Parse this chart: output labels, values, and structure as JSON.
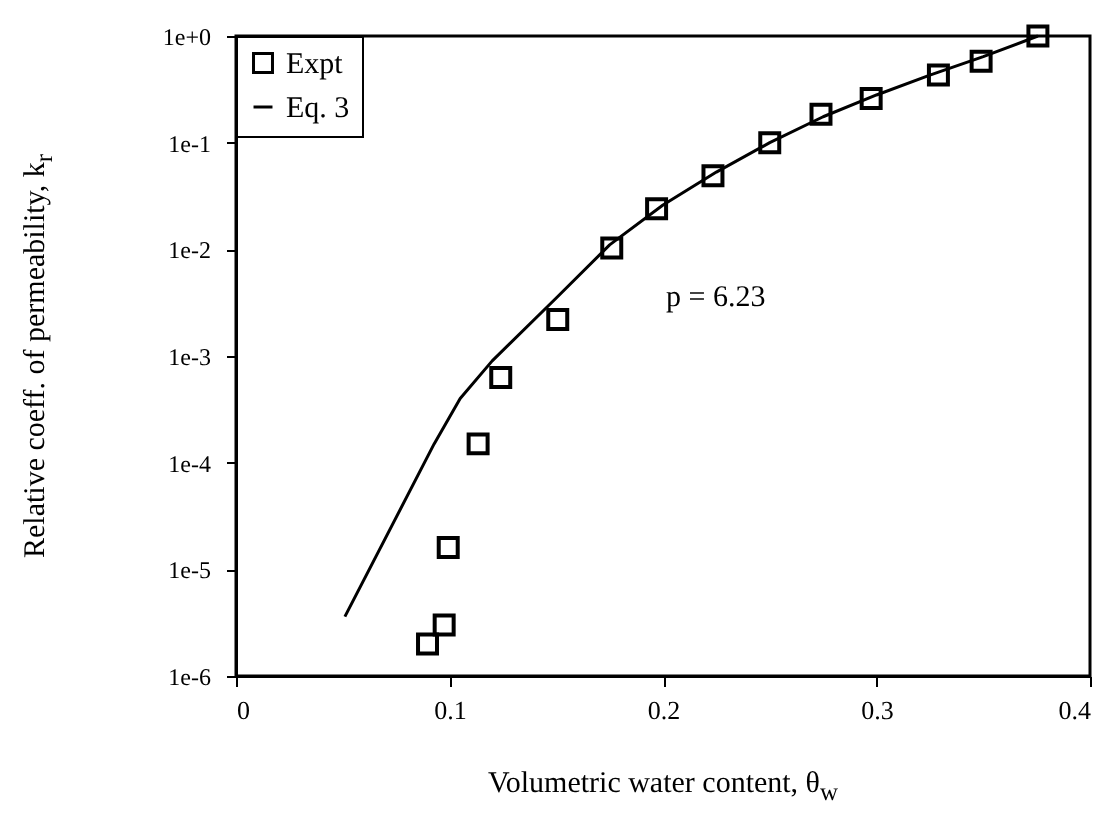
{
  "chart_data": {
    "type": "scatter",
    "xlabel": "Volumetric water content, θ$_{w}$",
    "ylabel": "Relative coeff. of permeability, k$_{r}$",
    "annotations": [
      "p = 6.23"
    ],
    "series": [
      {
        "name": "Expt",
        "type": "scatter",
        "color": "#000000",
        "marker": "square",
        "x": [
          0.0897,
          0.0975,
          0.0994,
          0.1134,
          0.124,
          0.1507,
          0.176,
          0.197,
          0.2234,
          0.25,
          0.274,
          0.2975,
          0.329,
          0.349,
          0.3756
        ],
        "values": [
          2e-06,
          3e-06,
          1.6e-05,
          0.00015,
          0.00063,
          0.0022,
          0.0103,
          0.024,
          0.049,
          0.1,
          0.185,
          0.26,
          0.43,
          0.58,
          1.0
        ]
      },
      {
        "name": "Eq. 3",
        "type": "line",
        "color": "#000000",
        "line_style": "solid",
        "x": [
          0.051,
          0.0928,
          0.105,
          0.12,
          0.15,
          0.175,
          0.2,
          0.225,
          0.25,
          0.275,
          0.3,
          0.325,
          0.35,
          0.3756
        ],
        "values": [
          3.6e-06,
          0.00015,
          0.0004,
          0.0009,
          0.0035,
          0.011,
          0.026,
          0.053,
          0.1,
          0.175,
          0.28,
          0.43,
          0.64,
          1.0
        ]
      }
    ],
    "xlim": [
      0,
      0.4
    ],
    "xticks": [
      0,
      0.1,
      0.2,
      0.3,
      0.4
    ],
    "ylim": [
      1e-06,
      1
    ],
    "log": "y",
    "yticks": [
      {
        "value": 1e-06,
        "label": "1e-6"
      },
      {
        "value": 1e-05,
        "label": "1e-5"
      },
      {
        "value": 0.0001,
        "label": "1e-4"
      },
      {
        "value": 0.001,
        "label": "1e-3"
      },
      {
        "value": 0.01,
        "label": "1e-2"
      },
      {
        "value": 0.1,
        "label": "1e-1"
      },
      {
        "value": 1,
        "label": "1e+0"
      }
    ],
    "grid": false,
    "legend": "top left"
  }
}
